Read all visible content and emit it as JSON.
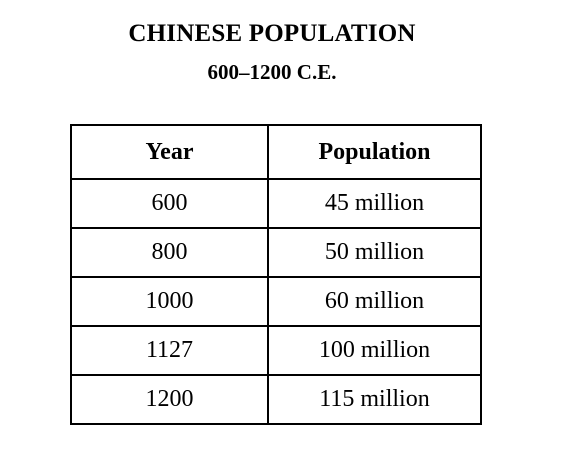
{
  "title": "CHINESE POPULATION",
  "subtitle": "600–1200 C.E.",
  "table": {
    "headers": [
      "Year",
      "Population"
    ],
    "rows": [
      [
        "600",
        "45 million"
      ],
      [
        "800",
        "50 million"
      ],
      [
        "1000",
        "60 million"
      ],
      [
        "1127",
        "100 million"
      ],
      [
        "1200",
        "115 million"
      ]
    ]
  },
  "chart_data": {
    "type": "table",
    "title": "CHINESE POPULATION",
    "subtitle": "600–1200 C.E.",
    "columns": [
      "Year",
      "Population"
    ],
    "x": [
      600,
      800,
      1000,
      1127,
      1200
    ],
    "values": [
      45,
      50,
      60,
      100,
      115
    ],
    "unit": "million"
  }
}
